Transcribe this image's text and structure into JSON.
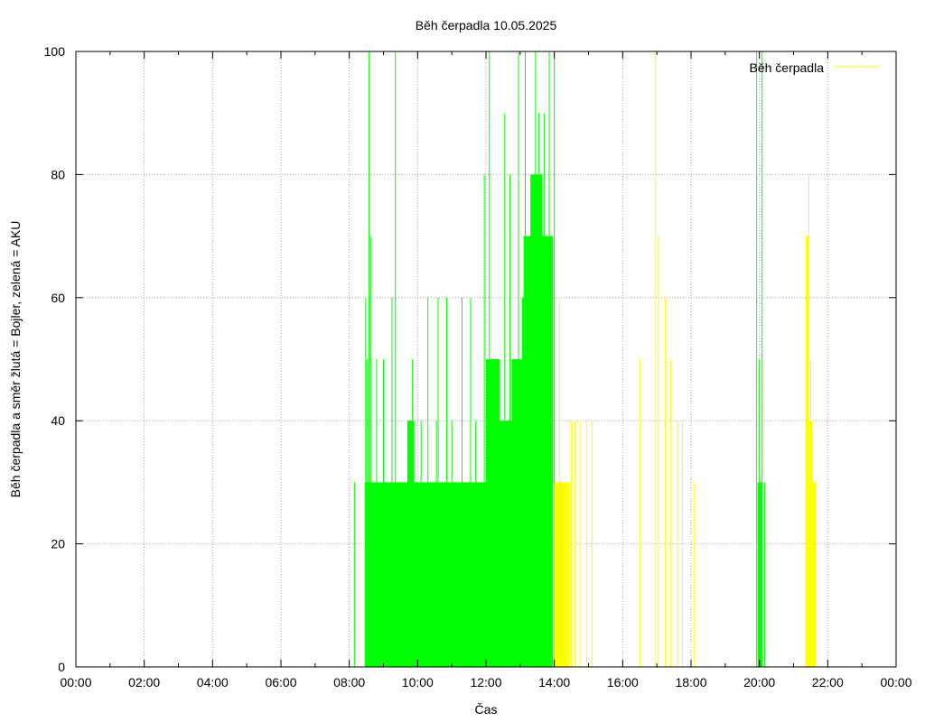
{
  "colors": {
    "aku": "#00ff00",
    "bojler": "#ffff00",
    "grid": "#a0a0a0",
    "frame": "#000000"
  },
  "chart_data": {
    "type": "bar",
    "title": "Běh čerpadla 10.05.2025",
    "xlabel": "Čas",
    "ylabel": "Běh čerpadla a směr žlutá = Bojler, zelená = AKU",
    "xlim": [
      0,
      24
    ],
    "ylim": [
      0,
      100
    ],
    "grid": true,
    "legend": {
      "placement": "top-right",
      "label": "Běh čerpadla"
    },
    "x_ticks": [
      {
        "x": 0,
        "label": "00:00"
      },
      {
        "x": 2,
        "label": "02:00"
      },
      {
        "x": 4,
        "label": "04:00"
      },
      {
        "x": 6,
        "label": "06:00"
      },
      {
        "x": 8,
        "label": "08:00"
      },
      {
        "x": 10,
        "label": "10:00"
      },
      {
        "x": 12,
        "label": "12:00"
      },
      {
        "x": 14,
        "label": "14:00"
      },
      {
        "x": 16,
        "label": "16:00"
      },
      {
        "x": 18,
        "label": "18:00"
      },
      {
        "x": 20,
        "label": "20:00"
      },
      {
        "x": 22,
        "label": "22:00"
      },
      {
        "x": 24,
        "label": "00:00"
      }
    ],
    "y_ticks": [
      0,
      20,
      40,
      60,
      80,
      100
    ],
    "series": [
      {
        "name": "AKU",
        "color_key": "aku",
        "spikes": [
          [
            8.15,
            30
          ],
          [
            8.48,
            60
          ],
          [
            8.52,
            50
          ],
          [
            8.58,
            100
          ],
          [
            8.62,
            70
          ],
          [
            8.8,
            50
          ],
          [
            9.0,
            50
          ],
          [
            9.35,
            100
          ],
          [
            9.25,
            60
          ],
          [
            9.85,
            50
          ],
          [
            10.3,
            60
          ],
          [
            10.6,
            60
          ],
          [
            10.85,
            60
          ],
          [
            11.3,
            60
          ],
          [
            11.55,
            60
          ],
          [
            12.15,
            50
          ],
          [
            10.1,
            40
          ],
          [
            10.55,
            40
          ],
          [
            11.0,
            40
          ],
          [
            11.7,
            40
          ],
          [
            11.95,
            80
          ],
          [
            12.1,
            100
          ],
          [
            12.55,
            90
          ],
          [
            12.7,
            80
          ],
          [
            12.95,
            100
          ],
          [
            13.15,
            100
          ],
          [
            13.35,
            80
          ],
          [
            13.45,
            100
          ],
          [
            13.55,
            90
          ],
          [
            13.7,
            90
          ],
          [
            13.85,
            100
          ],
          [
            13.95,
            70
          ],
          [
            14.0,
            100
          ]
        ],
        "blocks": [
          {
            "x0": 8.45,
            "x1": 12.0,
            "value": 30
          },
          {
            "x0": 9.7,
            "x1": 9.9,
            "value": 40
          },
          {
            "x0": 12.0,
            "x1": 12.4,
            "value": 50
          },
          {
            "x0": 12.0,
            "x1": 13.35,
            "value": 40
          },
          {
            "x0": 12.75,
            "x1": 13.1,
            "value": 50
          },
          {
            "x0": 13.05,
            "x1": 13.3,
            "value": 60
          },
          {
            "x0": 13.1,
            "x1": 13.6,
            "value": 70
          },
          {
            "x0": 13.3,
            "x1": 13.65,
            "value": 80
          },
          {
            "x0": 13.6,
            "x1": 13.95,
            "value": 70
          },
          {
            "x0": 19.95,
            "x1": 20.1,
            "value": 30
          }
        ],
        "extra_spikes": [
          [
            19.92,
            100
          ],
          [
            20.0,
            50
          ],
          [
            20.08,
            100
          ],
          [
            20.15,
            30
          ]
        ]
      },
      {
        "name": "Bojler",
        "color_key": "bojler",
        "spikes": [
          [
            14.05,
            30
          ],
          [
            14.15,
            60
          ],
          [
            14.5,
            40
          ],
          [
            14.6,
            40
          ],
          [
            14.75,
            40
          ],
          [
            14.95,
            40
          ],
          [
            15.1,
            40
          ],
          [
            16.5,
            50
          ],
          [
            16.95,
            100
          ],
          [
            17.05,
            70
          ],
          [
            17.25,
            60
          ],
          [
            17.4,
            50
          ],
          [
            17.6,
            40
          ],
          [
            17.75,
            40
          ],
          [
            18.1,
            30
          ],
          [
            21.45,
            80
          ],
          [
            21.5,
            50
          ]
        ],
        "blocks": [
          {
            "x0": 14.0,
            "x1": 14.45,
            "value": 30
          },
          {
            "x0": 21.35,
            "x1": 21.45,
            "value": 70
          },
          {
            "x0": 21.45,
            "x1": 21.55,
            "value": 40
          },
          {
            "x0": 21.55,
            "x1": 21.65,
            "value": 30
          }
        ]
      }
    ]
  }
}
